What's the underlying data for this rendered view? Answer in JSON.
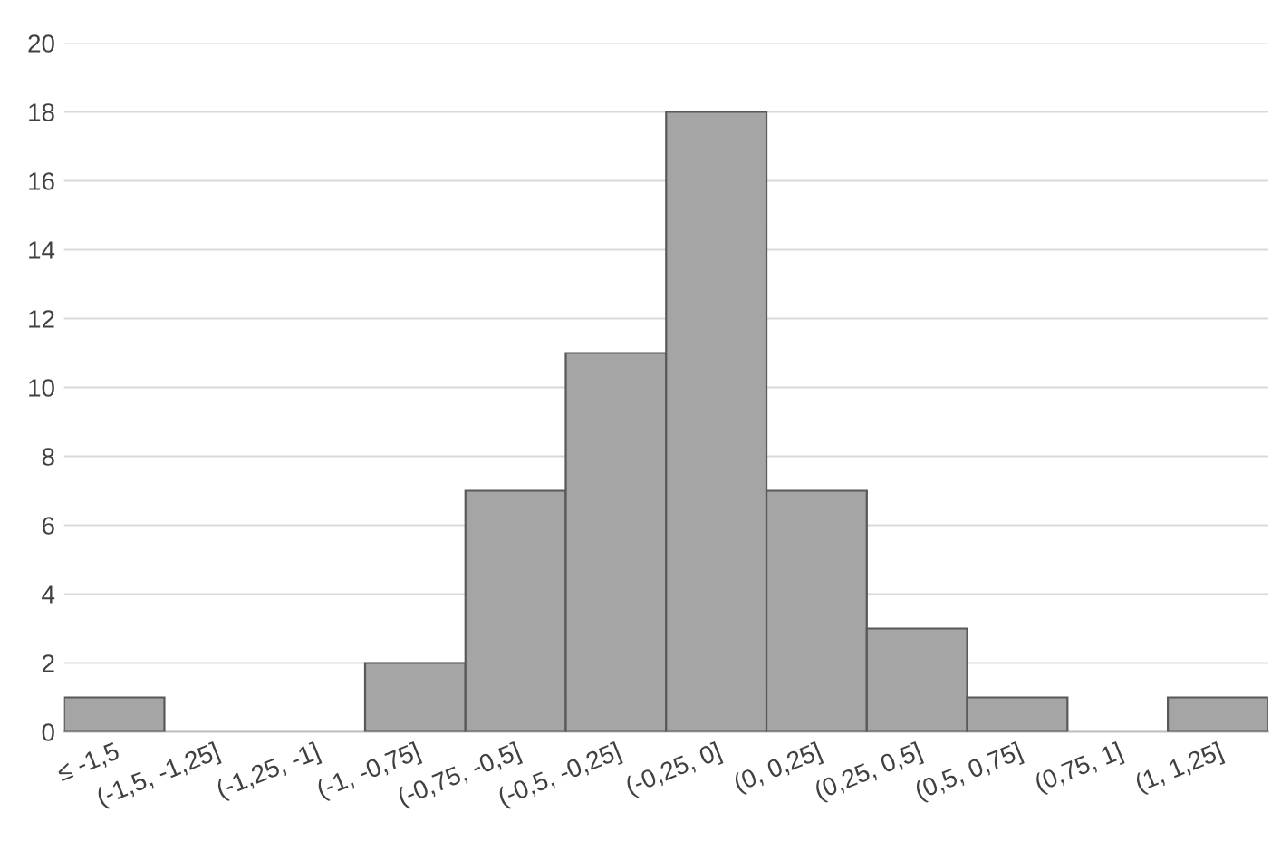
{
  "chart_data": {
    "type": "bar",
    "categories": [
      "≤ -1,5",
      "(-1,5, -1,25]",
      "(-1,25, -1]",
      "(-1, -0,75]",
      "(-0,75, -0,5]",
      "(-0,5, -0,25]",
      "(-0,25, 0]",
      "(0, 0,25]",
      "(0,25, 0,5]",
      "(0,5, 0,75]",
      "(0,75, 1]",
      "(1, 1,25]"
    ],
    "values": [
      1,
      0,
      0,
      2,
      7,
      11,
      18,
      7,
      3,
      1,
      0,
      1
    ],
    "color": "#a5a5a5",
    "ylim": [
      0,
      20
    ],
    "yticks": [
      0,
      2,
      4,
      6,
      8,
      10,
      12,
      14,
      16,
      18,
      20
    ],
    "grid": "y"
  }
}
